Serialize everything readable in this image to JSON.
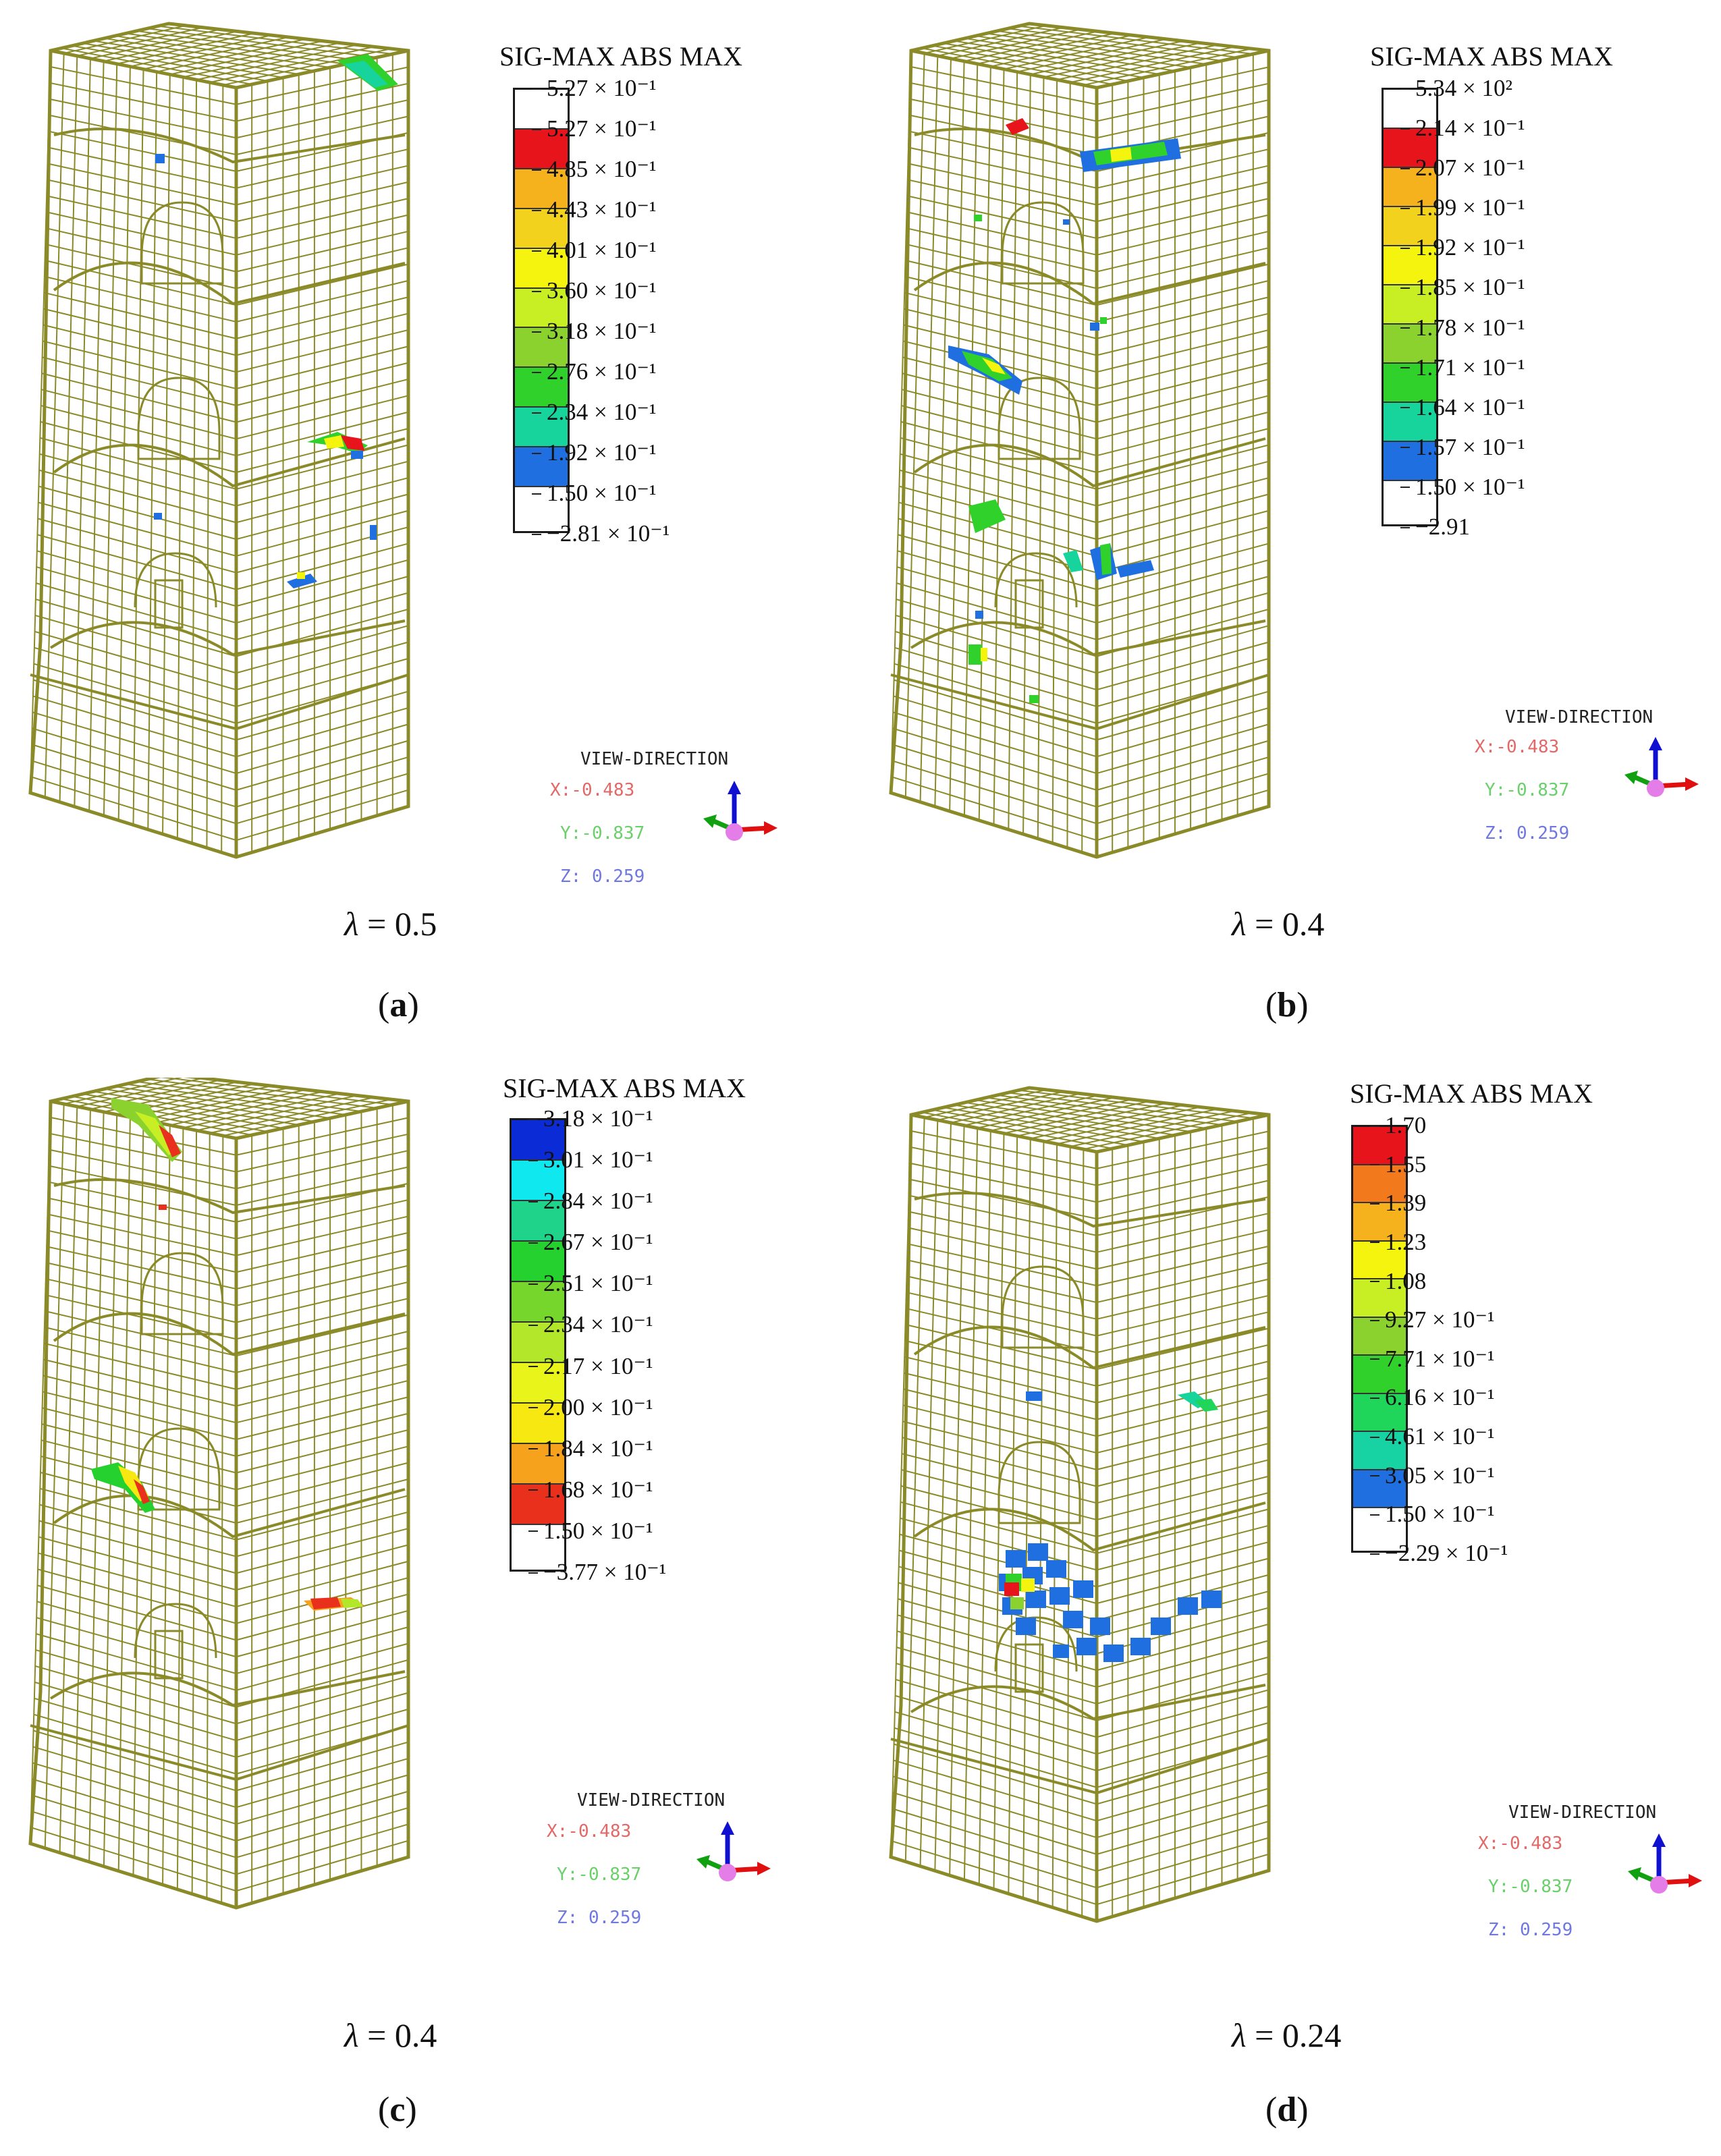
{
  "panels": [
    {
      "id": "a",
      "legend_title": "SIG-MAX ABS MAX",
      "legend_colors": [
        "#ffffff",
        "#e8141c",
        "#f6b21c",
        "#f2d21c",
        "#f4f40e",
        "#c7ef23",
        "#8bd22e",
        "#2fd12a",
        "#17d39c",
        "#1f6fe0",
        "#ffffff"
      ],
      "ticks": [
        "5.27 × 10⁻¹",
        "5.27 × 10⁻¹",
        "4.85 × 10⁻¹",
        "4.43 × 10⁻¹",
        "4.01 × 10⁻¹",
        "3.60 × 10⁻¹",
        "3.18 × 10⁻¹",
        "2.76 × 10⁻¹",
        "2.34 × 10⁻¹",
        "1.92 × 10⁻¹",
        "1.50 × 10⁻¹",
        "−2.81 × 10⁻¹"
      ],
      "view_direction": {
        "title": "VIEW-DIRECTION",
        "x": "X:-0.483",
        "y": "Y:-0.837",
        "z": "Z: 0.259"
      },
      "lambda_symbol": "λ",
      "lambda_value": "= 0.5",
      "label": "a"
    },
    {
      "id": "b",
      "legend_title": "SIG-MAX ABS MAX",
      "legend_colors": [
        "#ffffff",
        "#e8141c",
        "#f6b21c",
        "#f2d21c",
        "#f4f40e",
        "#c7ef23",
        "#8bd22e",
        "#2fd12a",
        "#17d39c",
        "#1f6fe0",
        "#ffffff"
      ],
      "ticks": [
        "5.34 × 10²",
        "2.14 × 10⁻¹",
        "2.07 × 10⁻¹",
        "1.99 × 10⁻¹",
        "1.92 × 10⁻¹",
        "1.85 × 10⁻¹",
        "1.78 × 10⁻¹",
        "1.71 × 10⁻¹",
        "1.64 × 10⁻¹",
        "1.57 × 10⁻¹",
        "1.50 × 10⁻¹",
        "−2.91"
      ],
      "view_direction": {
        "title": "VIEW-DIRECTION",
        "x": "X:-0.483",
        "y": "Y:-0.837",
        "z": "Z: 0.259"
      },
      "lambda_symbol": "λ",
      "lambda_value": "= 0.4",
      "label": "b"
    },
    {
      "id": "c",
      "legend_title": "SIG-MAX ABS MAX",
      "legend_colors": [
        "#0a2bd6",
        "#10e8f0",
        "#1fd38a",
        "#24d12e",
        "#77d62c",
        "#b3e82a",
        "#e8f41a",
        "#f7e812",
        "#f6a21c",
        "#e8301c",
        "#ffffff"
      ],
      "ticks": [
        "3.18 × 10⁻¹",
        "3.01 × 10⁻¹",
        "2.84 × 10⁻¹",
        "2.67 × 10⁻¹",
        "2.51 × 10⁻¹",
        "2.34 × 10⁻¹",
        "2.17 × 10⁻¹",
        "2.00 × 10⁻¹",
        "1.84 × 10⁻¹",
        "1.68 × 10⁻¹",
        "1.50 × 10⁻¹",
        "−3.77 × 10⁻¹"
      ],
      "view_direction": {
        "title": "VIEW-DIRECTION",
        "x": "X:-0.483",
        "y": "Y:-0.837",
        "z": "Z: 0.259"
      },
      "lambda_symbol": "λ",
      "lambda_value": "= 0.4",
      "label": "c"
    },
    {
      "id": "d",
      "legend_title": "SIG-MAX ABS MAX",
      "legend_colors": [
        "#e8141c",
        "#f27a1c",
        "#f6b21c",
        "#f4f40e",
        "#c7ef23",
        "#8bd22e",
        "#2fd12a",
        "#1fd65a",
        "#17d3a4",
        "#1f6fe0",
        "#ffffff"
      ],
      "ticks": [
        "1.70",
        "1.55",
        "1.39",
        "1.23",
        "1.08",
        "9.27 × 10⁻¹",
        "7.71 × 10⁻¹",
        "6.16 × 10⁻¹",
        "4.61 × 10⁻¹",
        "3.05 × 10⁻¹",
        "1.50 × 10⁻¹",
        "−2.29 × 10⁻¹"
      ],
      "view_direction": {
        "title": "VIEW-DIRECTION",
        "x": "X:-0.483",
        "y": "Y:-0.837",
        "z": "Z: 0.259"
      },
      "lambda_symbol": "λ",
      "lambda_value": "= 0.24",
      "label": "d"
    }
  ],
  "colors": {
    "mesh": "#8a8a28",
    "stress_red": "#e8141c",
    "stress_yellow": "#f4f40e",
    "stress_green": "#2fd12a",
    "stress_blue": "#1f6fe0"
  }
}
